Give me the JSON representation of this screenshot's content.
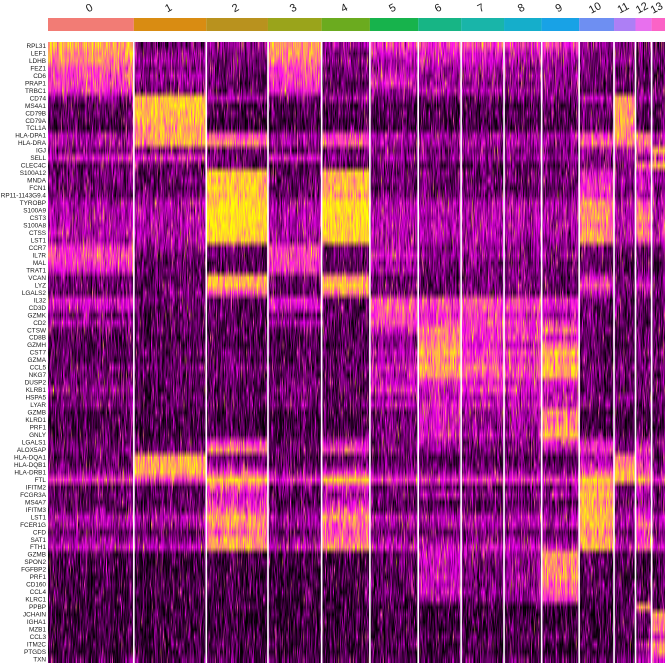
{
  "chart_data": {
    "type": "heatmap",
    "title": "",
    "xlabel": "",
    "ylabel": "",
    "legend": "none",
    "colors": {
      "low": "#000000",
      "mid": "#ff00ff",
      "high": "#ffff00",
      "separator": "#ffffff"
    },
    "clusters": [
      {
        "id": "0",
        "color": "#f27c75"
      },
      {
        "id": "1",
        "color": "#d98c12"
      },
      {
        "id": "2",
        "color": "#b9921e"
      },
      {
        "id": "3",
        "color": "#9aa41b"
      },
      {
        "id": "4",
        "color": "#6bab1f"
      },
      {
        "id": "5",
        "color": "#17b34c"
      },
      {
        "id": "6",
        "color": "#17b585"
      },
      {
        "id": "7",
        "color": "#19b5a9"
      },
      {
        "id": "8",
        "color": "#15aecb"
      },
      {
        "id": "9",
        "color": "#18a2e6"
      },
      {
        "id": "10",
        "color": "#6e8ff2"
      },
      {
        "id": "11",
        "color": "#ad7ff5"
      },
      {
        "id": "12",
        "color": "#e870ee"
      },
      {
        "id": "13",
        "color": "#fb63c6"
      }
    ],
    "cluster_cells": [
      160,
      135,
      115,
      100,
      90,
      90,
      80,
      80,
      70,
      70,
      65,
      40,
      30,
      25
    ],
    "gene_labels": [
      "RPL31",
      "LEF1",
      "LDHB",
      "FEZ1",
      "CD6",
      "PRAP1",
      "TRBC1",
      "CD74",
      "MS4A1",
      "CD79B",
      "CD79A",
      "TCL1A",
      "HLA-DPA1",
      "HLA-DRA",
      "IGJ",
      "SELL",
      "CLEC4C",
      "S100A12",
      "MNDA",
      "FCN1",
      "RP11-1143G9.4",
      "TYROBP",
      "S100A9",
      "CST3",
      "S100A8",
      "CTSS",
      "LST1",
      "CCR7",
      "IL7R",
      "MAL",
      "TRAT1",
      "VCAN",
      "LYZ",
      "LGALS2",
      "IL32",
      "CD3D",
      "GZMK",
      "CD2",
      "CTSW",
      "CD8B",
      "GZMH",
      "CST7",
      "GZMA",
      "CCL5",
      "NKG7",
      "DUSP2",
      "KLRB1",
      "HSPA5",
      "LYAR",
      "GZMB",
      "KLRD1",
      "PRF1",
      "GNLY",
      "LGALS1",
      "ALOX5AP",
      "HLA-DQA1",
      "HLA-DQB1",
      "HLA-DRB1",
      "FTL",
      "IFITM2",
      "FCGR3A",
      "MS4A7",
      "IFITM3",
      "LST1",
      "FCER1G",
      "CFD",
      "SAT1",
      "FTH1",
      "GZMB",
      "SPON2",
      "FGFBP2",
      "PRF1",
      "CD160",
      "CCL4",
      "KLRC1",
      "PPBP",
      "JCHAIN",
      "IGHA1",
      "MZB1",
      "CCL3",
      "ITM2C",
      "PTGDS",
      "TXN"
    ],
    "expression_profile": [
      [
        2.5,
        0.6,
        0.9,
        2.4,
        0.9,
        1.6,
        1.7,
        1.9,
        1.5,
        1.6,
        0.8,
        0.7,
        0.6,
        0.5
      ],
      [
        2.3,
        0.8,
        0.7,
        2.3,
        0.7,
        1.2,
        1.4,
        1.4,
        1.1,
        1.2,
        0.7,
        0.6,
        0.5,
        0.6
      ],
      [
        2.2,
        1.0,
        0.6,
        2.1,
        0.8,
        1.0,
        1.3,
        1.2,
        1.0,
        1.0,
        0.6,
        0.8,
        0.4,
        0.5
      ],
      [
        1.9,
        0.7,
        0.5,
        1.8,
        0.6,
        0.9,
        1.0,
        0.9,
        0.8,
        0.8,
        0.5,
        0.5,
        0.4,
        0.4
      ],
      [
        1.8,
        0.9,
        0.6,
        1.8,
        0.7,
        1.2,
        0.9,
        0.9,
        0.9,
        0.9,
        0.5,
        0.6,
        0.5,
        0.4
      ],
      [
        1.7,
        0.8,
        0.5,
        1.6,
        0.5,
        1.4,
        0.9,
        0.8,
        0.7,
        0.8,
        0.5,
        0.6,
        0.4,
        0.4
      ],
      [
        1.6,
        0.6,
        0.5,
        1.5,
        0.5,
        0.9,
        1.2,
        1.0,
        0.8,
        0.7,
        0.4,
        0.4,
        0.4,
        0.3
      ],
      [
        0.8,
        2.6,
        1.0,
        0.7,
        0.9,
        0.6,
        0.7,
        0.6,
        0.6,
        0.6,
        1.0,
        2.4,
        0.9,
        0.7
      ],
      [
        0.4,
        2.7,
        0.3,
        0.3,
        0.3,
        0.3,
        0.3,
        0.3,
        0.3,
        0.3,
        0.5,
        2.5,
        0.4,
        0.4
      ],
      [
        0.5,
        2.6,
        0.4,
        0.4,
        0.4,
        0.4,
        0.4,
        0.4,
        0.4,
        0.4,
        0.6,
        2.3,
        0.4,
        0.5
      ],
      [
        0.4,
        2.6,
        0.3,
        0.3,
        0.3,
        0.3,
        0.3,
        0.3,
        0.3,
        0.3,
        0.5,
        2.4,
        0.4,
        0.4
      ],
      [
        0.3,
        2.4,
        0.3,
        0.3,
        0.3,
        0.3,
        0.3,
        0.3,
        0.3,
        0.3,
        0.4,
        2.2,
        0.3,
        0.3
      ],
      [
        1.0,
        2.5,
        1.8,
        1.0,
        1.7,
        1.0,
        1.0,
        1.0,
        1.0,
        1.0,
        1.6,
        2.3,
        1.9,
        1.0
      ],
      [
        0.9,
        2.4,
        2.1,
        0.9,
        1.9,
        0.9,
        0.9,
        0.9,
        0.9,
        0.9,
        2.0,
        2.2,
        2.0,
        0.9
      ],
      [
        0.6,
        0.7,
        0.5,
        0.6,
        0.5,
        0.6,
        0.6,
        0.6,
        0.6,
        0.6,
        0.7,
        0.9,
        1.4,
        2.5
      ],
      [
        1.4,
        1.5,
        0.6,
        1.4,
        0.6,
        0.9,
        0.8,
        0.8,
        0.8,
        0.8,
        0.6,
        0.8,
        0.7,
        1.0
      ],
      [
        0.4,
        0.5,
        0.5,
        0.4,
        0.4,
        0.4,
        0.4,
        0.4,
        0.4,
        0.4,
        0.6,
        0.6,
        1.8,
        2.4
      ],
      [
        0.5,
        0.5,
        2.7,
        0.5,
        2.6,
        0.5,
        0.5,
        0.5,
        0.5,
        0.5,
        1.4,
        0.7,
        1.0,
        0.6
      ],
      [
        0.6,
        0.6,
        2.6,
        0.6,
        2.5,
        0.6,
        0.6,
        0.6,
        0.6,
        0.6,
        1.5,
        0.8,
        1.1,
        0.6
      ],
      [
        0.5,
        0.5,
        2.7,
        0.5,
        2.6,
        0.5,
        0.5,
        0.5,
        0.5,
        0.5,
        1.7,
        0.6,
        1.2,
        0.6
      ],
      [
        0.6,
        0.6,
        2.6,
        0.6,
        2.5,
        0.6,
        0.6,
        0.6,
        0.6,
        0.6,
        1.6,
        0.7,
        1.0,
        0.6
      ],
      [
        1.0,
        1.0,
        2.9,
        1.0,
        2.9,
        1.0,
        1.0,
        1.0,
        1.0,
        1.0,
        2.3,
        1.0,
        2.0,
        1.0
      ],
      [
        1.0,
        1.0,
        2.9,
        1.0,
        2.9,
        1.0,
        1.0,
        1.0,
        1.0,
        1.0,
        2.2,
        1.0,
        2.1,
        1.0
      ],
      [
        1.0,
        1.0,
        2.9,
        1.0,
        2.8,
        1.0,
        1.0,
        1.0,
        1.0,
        1.0,
        2.4,
        1.0,
        2.3,
        1.0
      ],
      [
        1.0,
        1.0,
        2.9,
        1.0,
        2.8,
        1.0,
        1.0,
        1.0,
        1.0,
        1.0,
        2.1,
        1.0,
        1.9,
        1.0
      ],
      [
        1.0,
        1.0,
        2.8,
        1.0,
        2.8,
        1.0,
        1.0,
        1.0,
        1.0,
        1.0,
        2.3,
        1.0,
        2.2,
        1.0
      ],
      [
        0.9,
        0.9,
        2.7,
        0.9,
        2.7,
        0.9,
        0.9,
        0.9,
        0.9,
        0.9,
        2.4,
        0.9,
        1.8,
        0.9
      ],
      [
        1.6,
        0.8,
        0.6,
        1.8,
        0.6,
        0.9,
        0.7,
        0.8,
        0.7,
        0.7,
        0.6,
        0.6,
        0.6,
        0.6
      ],
      [
        1.7,
        0.6,
        0.5,
        1.9,
        0.5,
        1.3,
        0.8,
        0.9,
        0.8,
        0.8,
        0.5,
        0.5,
        0.5,
        0.5
      ],
      [
        1.6,
        0.5,
        0.4,
        1.7,
        0.4,
        0.9,
        0.6,
        0.7,
        0.6,
        0.6,
        0.4,
        0.4,
        0.4,
        0.4
      ],
      [
        1.4,
        0.5,
        0.4,
        1.6,
        0.4,
        1.0,
        0.6,
        0.7,
        0.6,
        0.6,
        0.4,
        0.4,
        0.4,
        0.4
      ],
      [
        0.5,
        0.5,
        2.5,
        0.5,
        2.4,
        0.5,
        0.5,
        0.5,
        0.5,
        0.5,
        1.2,
        0.5,
        0.8,
        0.5
      ],
      [
        0.6,
        0.6,
        2.6,
        0.6,
        2.6,
        0.6,
        0.6,
        0.6,
        0.6,
        0.6,
        1.8,
        0.6,
        1.4,
        0.6
      ],
      [
        0.5,
        0.5,
        1.9,
        0.5,
        2.2,
        0.5,
        0.5,
        0.5,
        0.5,
        0.5,
        1.0,
        0.5,
        0.8,
        0.5
      ],
      [
        1.3,
        0.6,
        0.5,
        1.4,
        0.5,
        1.9,
        1.7,
        1.8,
        1.6,
        1.5,
        0.5,
        0.5,
        0.5,
        0.5
      ],
      [
        1.2,
        0.5,
        0.4,
        1.3,
        0.4,
        1.9,
        1.8,
        1.9,
        1.7,
        1.4,
        0.4,
        0.4,
        0.4,
        0.4
      ],
      [
        0.5,
        0.4,
        0.4,
        0.5,
        0.4,
        1.7,
        1.5,
        1.6,
        1.3,
        0.9,
        0.4,
        0.4,
        0.4,
        0.4
      ],
      [
        1.0,
        0.5,
        0.4,
        1.0,
        0.4,
        1.8,
        1.7,
        1.8,
        1.6,
        1.5,
        0.4,
        0.4,
        0.4,
        0.4
      ],
      [
        0.5,
        0.5,
        0.4,
        0.5,
        0.4,
        1.2,
        2.2,
        1.7,
        1.6,
        2.0,
        0.5,
        0.4,
        0.4,
        0.4
      ],
      [
        0.4,
        0.4,
        0.4,
        0.4,
        0.4,
        0.8,
        2.1,
        1.6,
        1.5,
        1.3,
        0.4,
        0.4,
        0.4,
        0.4
      ],
      [
        0.4,
        0.4,
        0.4,
        0.4,
        0.4,
        0.7,
        2.3,
        1.4,
        1.2,
        2.0,
        0.4,
        0.4,
        0.4,
        0.4
      ],
      [
        0.5,
        0.5,
        0.5,
        0.5,
        0.5,
        1.0,
        2.6,
        1.8,
        1.7,
        2.7,
        0.5,
        0.5,
        0.5,
        0.5
      ],
      [
        0.4,
        0.4,
        0.4,
        0.4,
        0.4,
        0.9,
        2.2,
        1.7,
        1.5,
        2.3,
        0.4,
        0.4,
        0.4,
        0.4
      ],
      [
        0.6,
        0.6,
        0.6,
        0.6,
        0.6,
        1.2,
        2.5,
        2.0,
        1.8,
        2.6,
        0.6,
        0.6,
        0.6,
        0.6
      ],
      [
        0.5,
        0.5,
        0.5,
        0.5,
        0.5,
        1.0,
        2.4,
        1.9,
        1.6,
        2.5,
        0.5,
        0.5,
        0.5,
        0.5
      ],
      [
        0.6,
        0.5,
        0.5,
        0.6,
        0.5,
        1.2,
        1.6,
        1.4,
        1.2,
        1.4,
        0.5,
        0.5,
        0.5,
        0.5
      ],
      [
        0.8,
        0.4,
        0.4,
        0.8,
        0.4,
        1.5,
        1.3,
        1.7,
        1.3,
        1.2,
        0.4,
        0.4,
        0.4,
        0.4
      ],
      [
        0.5,
        0.5,
        0.5,
        0.5,
        0.5,
        0.8,
        1.2,
        1.0,
        1.0,
        1.2,
        0.6,
        0.8,
        0.5,
        0.5
      ],
      [
        0.7,
        0.5,
        0.5,
        0.7,
        0.5,
        1.1,
        1.4,
        1.3,
        1.1,
        1.3,
        0.5,
        0.5,
        0.5,
        0.5
      ],
      [
        0.3,
        0.3,
        0.3,
        0.3,
        0.3,
        0.4,
        1.4,
        0.8,
        0.9,
        2.2,
        0.3,
        0.3,
        0.3,
        0.3
      ],
      [
        0.3,
        0.3,
        0.3,
        0.3,
        0.3,
        0.5,
        1.3,
        0.8,
        0.9,
        2.1,
        0.3,
        0.3,
        0.3,
        0.3
      ],
      [
        0.3,
        0.3,
        0.3,
        0.3,
        0.3,
        0.5,
        1.3,
        0.7,
        0.8,
        2.3,
        0.3,
        0.3,
        0.3,
        0.3
      ],
      [
        0.4,
        0.4,
        0.4,
        0.4,
        0.4,
        0.6,
        1.5,
        1.0,
        1.0,
        2.6,
        0.4,
        0.4,
        0.4,
        0.4
      ],
      [
        0.5,
        0.5,
        1.6,
        0.5,
        1.3,
        0.6,
        1.0,
        0.7,
        0.7,
        1.6,
        1.3,
        0.5,
        1.0,
        0.5
      ],
      [
        0.6,
        0.6,
        2.2,
        0.6,
        1.8,
        0.6,
        0.8,
        0.7,
        0.7,
        1.0,
        1.6,
        0.6,
        1.6,
        0.6
      ],
      [
        0.4,
        2.4,
        0.6,
        0.4,
        0.5,
        0.4,
        0.4,
        0.4,
        0.4,
        0.4,
        0.9,
        2.1,
        1.3,
        0.4
      ],
      [
        0.5,
        2.5,
        0.8,
        0.5,
        0.6,
        0.5,
        0.5,
        0.5,
        0.5,
        0.5,
        1.2,
        2.2,
        1.5,
        0.5
      ],
      [
        0.8,
        2.6,
        1.7,
        0.8,
        1.5,
        0.8,
        0.8,
        0.8,
        0.8,
        0.8,
        1.8,
        2.4,
        1.8,
        0.8
      ],
      [
        1.6,
        1.7,
        2.8,
        1.6,
        2.8,
        1.6,
        1.6,
        1.6,
        1.6,
        1.6,
        2.7,
        2.6,
        2.6,
        1.6
      ],
      [
        0.4,
        0.4,
        1.8,
        0.4,
        1.3,
        0.4,
        0.6,
        0.4,
        0.4,
        0.6,
        2.3,
        0.4,
        1.2,
        0.4
      ],
      [
        0.5,
        0.5,
        1.4,
        0.5,
        0.9,
        0.6,
        1.1,
        0.7,
        0.7,
        1.0,
        2.5,
        0.5,
        1.0,
        0.5
      ],
      [
        0.4,
        0.4,
        1.5,
        0.4,
        1.2,
        0.4,
        0.4,
        0.4,
        0.4,
        0.4,
        2.4,
        0.4,
        0.8,
        0.4
      ],
      [
        0.5,
        0.5,
        1.9,
        0.5,
        1.8,
        0.5,
        0.6,
        0.5,
        0.5,
        0.6,
        2.5,
        0.5,
        1.2,
        0.5
      ],
      [
        1.0,
        1.0,
        2.4,
        1.0,
        2.2,
        1.0,
        1.1,
        1.0,
        1.0,
        1.1,
        2.6,
        1.0,
        1.7,
        1.0
      ],
      [
        0.9,
        0.9,
        2.3,
        0.9,
        2.0,
        0.9,
        1.0,
        0.9,
        0.9,
        1.1,
        2.5,
        0.9,
        2.0,
        0.9
      ],
      [
        0.5,
        0.5,
        1.9,
        0.5,
        1.8,
        0.5,
        0.5,
        0.5,
        0.5,
        0.5,
        2.2,
        0.5,
        1.4,
        0.5
      ],
      [
        0.8,
        0.8,
        2.3,
        0.8,
        2.1,
        0.8,
        0.9,
        0.8,
        0.8,
        0.9,
        2.4,
        0.8,
        1.7,
        0.8
      ],
      [
        1.2,
        1.2,
        2.4,
        1.2,
        2.3,
        1.2,
        1.2,
        1.2,
        1.2,
        1.2,
        2.5,
        1.2,
        2.0,
        1.2
      ],
      [
        0.3,
        0.3,
        0.3,
        0.3,
        0.3,
        0.4,
        1.3,
        0.7,
        0.8,
        2.4,
        0.3,
        0.3,
        0.3,
        0.3
      ],
      [
        0.3,
        0.3,
        0.3,
        0.3,
        0.3,
        0.4,
        1.2,
        0.6,
        0.8,
        2.3,
        0.4,
        0.3,
        0.3,
        0.3
      ],
      [
        0.3,
        0.3,
        0.3,
        0.3,
        0.3,
        0.4,
        1.1,
        0.6,
        0.7,
        2.2,
        0.3,
        0.3,
        0.3,
        0.3
      ],
      [
        0.3,
        0.3,
        0.3,
        0.3,
        0.3,
        0.4,
        1.3,
        0.7,
        0.9,
        2.3,
        0.3,
        0.3,
        0.3,
        0.3
      ],
      [
        0.3,
        0.3,
        0.3,
        0.3,
        0.3,
        0.4,
        1.1,
        0.6,
        0.8,
        2.0,
        0.3,
        0.3,
        0.3,
        0.3
      ],
      [
        0.3,
        0.3,
        0.3,
        0.3,
        0.3,
        0.5,
        1.2,
        0.8,
        0.8,
        2.0,
        0.3,
        0.3,
        0.3,
        0.3
      ],
      [
        0.3,
        0.3,
        0.3,
        0.3,
        0.3,
        0.4,
        0.9,
        0.6,
        0.7,
        1.6,
        0.3,
        0.3,
        0.3,
        0.3
      ],
      [
        0.2,
        0.2,
        0.2,
        0.2,
        0.2,
        0.2,
        0.2,
        0.2,
        0.2,
        0.2,
        0.2,
        0.3,
        2.2,
        0.3
      ],
      [
        0.2,
        0.3,
        0.2,
        0.2,
        0.2,
        0.2,
        0.2,
        0.2,
        0.2,
        0.2,
        0.2,
        0.4,
        0.5,
        2.3
      ],
      [
        0.2,
        0.3,
        0.2,
        0.2,
        0.2,
        0.2,
        0.2,
        0.2,
        0.2,
        0.2,
        0.2,
        0.4,
        0.4,
        2.2
      ],
      [
        0.2,
        0.3,
        0.2,
        0.2,
        0.2,
        0.2,
        0.2,
        0.2,
        0.2,
        0.2,
        0.2,
        0.4,
        0.4,
        2.1
      ],
      [
        0.3,
        0.3,
        0.3,
        0.3,
        0.3,
        0.3,
        0.5,
        0.4,
        0.4,
        0.5,
        0.3,
        0.3,
        0.3,
        1.2
      ],
      [
        0.3,
        0.3,
        0.3,
        0.3,
        0.3,
        0.3,
        0.3,
        0.3,
        0.3,
        0.3,
        0.3,
        0.3,
        1.0,
        2.3
      ],
      [
        0.2,
        0.2,
        0.2,
        0.2,
        0.2,
        0.2,
        0.2,
        0.2,
        0.2,
        0.2,
        0.2,
        0.3,
        0.5,
        2.2
      ],
      [
        0.4,
        0.4,
        0.4,
        0.4,
        0.4,
        0.4,
        0.4,
        0.4,
        0.4,
        0.4,
        0.4,
        0.5,
        0.8,
        1.2
      ]
    ]
  }
}
